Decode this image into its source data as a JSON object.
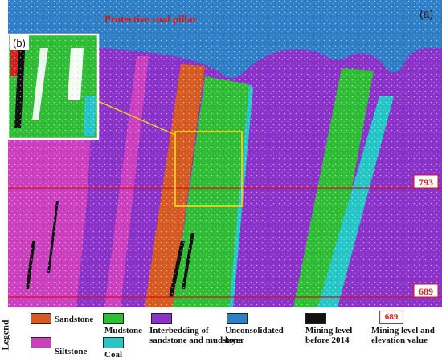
{
  "figure": {
    "panel_label": "(a)",
    "inset_label": "(b)",
    "pillar_label": "Protective coal pillar",
    "elevations": [
      "793",
      "689"
    ],
    "colors": {
      "siltstone": "#cc3fbf",
      "interbedding": "#8a32c9",
      "sandstone": "#d65a22",
      "mudstone": "#2fbd35",
      "coal": "#25c6c8",
      "unconsolidated": "#2f7fc8",
      "mining": "#111111",
      "line": "#e01010",
      "box": "#f0d21a"
    }
  },
  "legend": {
    "title": "Legend",
    "items": [
      {
        "label": "Sandstone"
      },
      {
        "label": "Siltstone"
      },
      {
        "label": "Mudstone"
      },
      {
        "label": "Coal"
      },
      {
        "label": "Interbedding of sandstone and mudstone"
      },
      {
        "label": "Unconsolidated layer"
      },
      {
        "label": "Mining level before 2014"
      },
      {
        "label": "Mining level and elevation value"
      }
    ],
    "elevation_sample": "689"
  }
}
